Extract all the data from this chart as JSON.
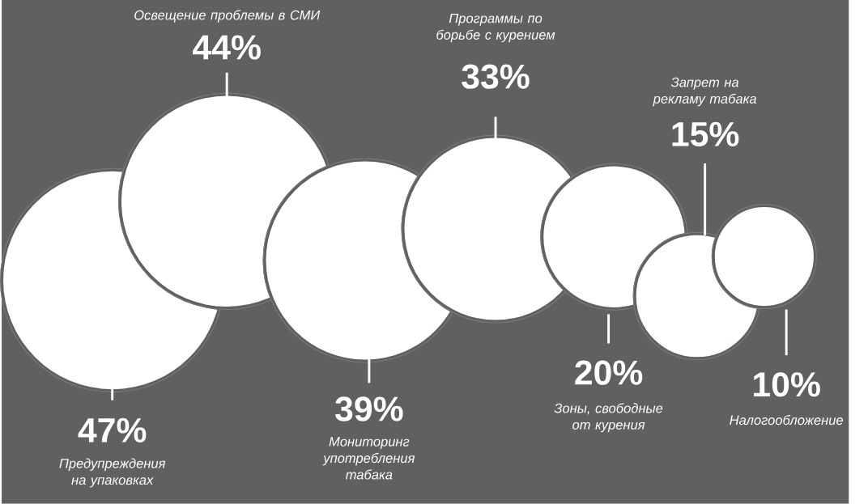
{
  "chart_data": {
    "type": "other",
    "categories": [
      "Предупреждения на упаковках",
      "Освещение проблемы в СМИ",
      "Мониторинг употребления табака",
      "Программы по борьбе с курением",
      "Зоны, свободные от курения",
      "Запрет на рекламу табака",
      "Налогообложение"
    ],
    "values": [
      47,
      44,
      39,
      33,
      20,
      15,
      10
    ],
    "value_labels": [
      "47%",
      "44%",
      "39%",
      "33%",
      "20%",
      "15%",
      "10%"
    ],
    "colors": [
      "#ffffff",
      "#ffffff",
      "#ffffff",
      "#ffffff",
      "#ffffff",
      "#ffffff",
      "#ffffff"
    ]
  }
}
